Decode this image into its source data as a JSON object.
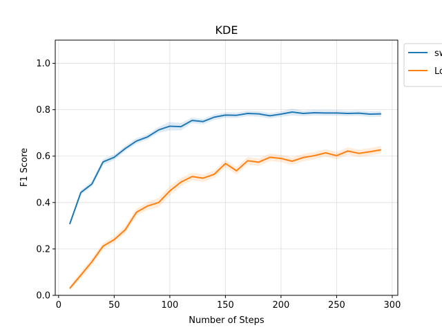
{
  "chart_data": {
    "type": "line",
    "title": "KDE",
    "xlabel": "Number of Steps",
    "ylabel": "F1 Score",
    "xlim": [
      -3,
      305
    ],
    "ylim": [
      0.0,
      1.1
    ],
    "xticks": [
      0,
      50,
      100,
      150,
      200,
      250,
      300
    ],
    "yticks": [
      0.0,
      0.2,
      0.4,
      0.6,
      0.8,
      1.0
    ],
    "grid": true,
    "legend_position": "outside-top-right",
    "x": [
      10,
      20,
      30,
      40,
      50,
      60,
      70,
      80,
      90,
      100,
      110,
      120,
      130,
      140,
      150,
      160,
      170,
      180,
      190,
      200,
      210,
      220,
      230,
      240,
      250,
      260,
      270,
      280,
      290
    ],
    "series": [
      {
        "name": "sw",
        "color": "#1f77b4",
        "values": [
          0.307,
          0.443,
          0.48,
          0.575,
          0.595,
          0.633,
          0.665,
          0.683,
          0.713,
          0.729,
          0.727,
          0.754,
          0.749,
          0.768,
          0.777,
          0.776,
          0.784,
          0.782,
          0.774,
          0.781,
          0.79,
          0.784,
          0.787,
          0.786,
          0.786,
          0.784,
          0.785,
          0.781,
          0.782
        ],
        "band": [
          0.008,
          0.01,
          0.012,
          0.013,
          0.012,
          0.012,
          0.012,
          0.012,
          0.013,
          0.018,
          0.016,
          0.012,
          0.012,
          0.012,
          0.012,
          0.012,
          0.012,
          0.012,
          0.012,
          0.012,
          0.015,
          0.012,
          0.012,
          0.012,
          0.012,
          0.012,
          0.012,
          0.012,
          0.012
        ]
      },
      {
        "name": "Lo",
        "color": "#ff7f0e",
        "values": [
          0.03,
          0.087,
          0.145,
          0.212,
          0.24,
          0.283,
          0.358,
          0.385,
          0.4,
          0.45,
          0.488,
          0.512,
          0.505,
          0.522,
          0.568,
          0.537,
          0.58,
          0.574,
          0.595,
          0.59,
          0.578,
          0.594,
          0.602,
          0.614,
          0.602,
          0.622,
          0.612,
          0.619,
          0.627
        ],
        "band": [
          0.008,
          0.015,
          0.015,
          0.014,
          0.014,
          0.016,
          0.016,
          0.016,
          0.02,
          0.02,
          0.018,
          0.016,
          0.016,
          0.016,
          0.016,
          0.016,
          0.016,
          0.016,
          0.016,
          0.016,
          0.016,
          0.016,
          0.016,
          0.016,
          0.016,
          0.016,
          0.016,
          0.016,
          0.016
        ]
      }
    ]
  }
}
